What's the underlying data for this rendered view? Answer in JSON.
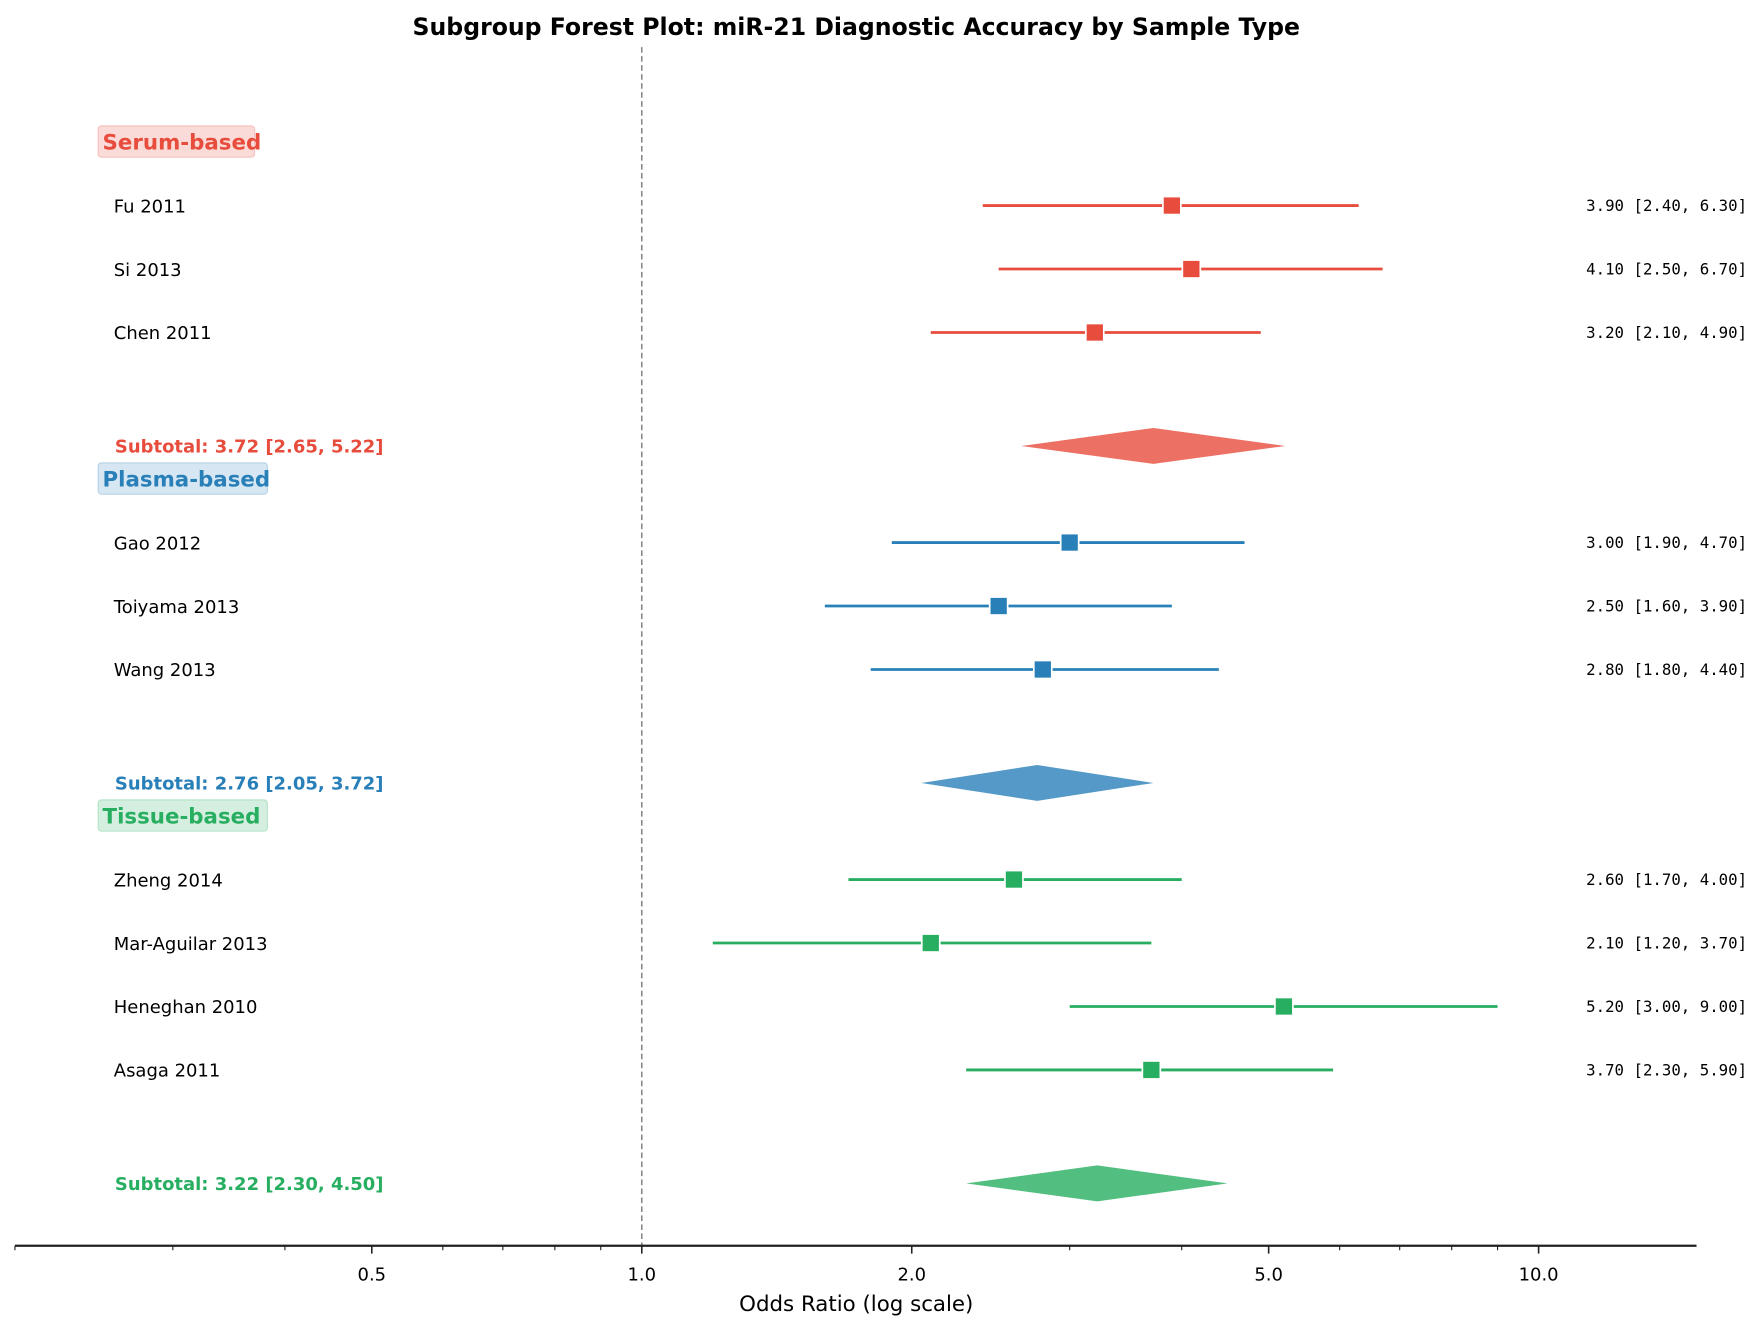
{
  "chart_data": {
    "type": "forest",
    "title": "Subgroup Forest Plot: miR-21 Diagnostic Accuracy by Sample Type",
    "xlabel": "Odds Ratio (log scale)",
    "xscale": "log",
    "xlim": [
      0.2,
      15
    ],
    "xticks": [
      0.5,
      1.0,
      2.0,
      5.0,
      10.0
    ],
    "xtick_labels": [
      "0.5",
      "1.0",
      "2.0",
      "5.0",
      "10.0"
    ],
    "reference_line": 1.0,
    "groups": [
      {
        "name": "Serum-based",
        "color": "#e74c3c",
        "header_bg": "#fadbd8",
        "studies": [
          {
            "label": "Fu 2011",
            "or": 3.9,
            "lo": 2.4,
            "hi": 6.3,
            "text": "3.90 [2.40, 6.30]"
          },
          {
            "label": "Si 2013",
            "or": 4.1,
            "lo": 2.5,
            "hi": 6.7,
            "text": "4.10 [2.50, 6.70]"
          },
          {
            "label": "Chen 2011",
            "or": 3.2,
            "lo": 2.1,
            "hi": 4.9,
            "text": "3.20 [2.10, 4.90]"
          }
        ],
        "subtotal": {
          "or": 3.72,
          "lo": 2.65,
          "hi": 5.22,
          "text": "Subtotal: 3.72 [2.65, 5.22]"
        }
      },
      {
        "name": "Plasma-based",
        "color": "#2980b9",
        "header_bg": "#d6e6f2",
        "studies": [
          {
            "label": "Gao 2012",
            "or": 3.0,
            "lo": 1.9,
            "hi": 4.7,
            "text": "3.00 [1.90, 4.70]"
          },
          {
            "label": "Toiyama 2013",
            "or": 2.5,
            "lo": 1.6,
            "hi": 3.9,
            "text": "2.50 [1.60, 3.90]"
          },
          {
            "label": "Wang 2013",
            "or": 2.8,
            "lo": 1.8,
            "hi": 4.4,
            "text": "2.80 [1.80, 4.40]"
          }
        ],
        "subtotal": {
          "or": 2.76,
          "lo": 2.05,
          "hi": 3.72,
          "text": "Subtotal: 2.76 [2.05, 3.72]"
        }
      },
      {
        "name": "Tissue-based",
        "color": "#27ae60",
        "header_bg": "#d4efdf",
        "studies": [
          {
            "label": "Zheng 2014",
            "or": 2.6,
            "lo": 1.7,
            "hi": 4.0,
            "text": "2.60 [1.70, 4.00]"
          },
          {
            "label": "Mar-Aguilar 2013",
            "or": 2.1,
            "lo": 1.2,
            "hi": 3.7,
            "text": "2.10 [1.20, 3.70]"
          },
          {
            "label": "Heneghan 2010",
            "or": 5.2,
            "lo": 3.0,
            "hi": 9.0,
            "text": "5.20 [3.00, 9.00]"
          },
          {
            "label": "Asaga 2011",
            "or": 3.7,
            "lo": 2.3,
            "hi": 5.9,
            "text": "3.70 [2.30, 5.90]"
          }
        ],
        "subtotal": {
          "or": 3.22,
          "lo": 2.3,
          "hi": 4.5,
          "text": "Subtotal: 3.22 [2.30, 4.50]"
        }
      }
    ]
  }
}
